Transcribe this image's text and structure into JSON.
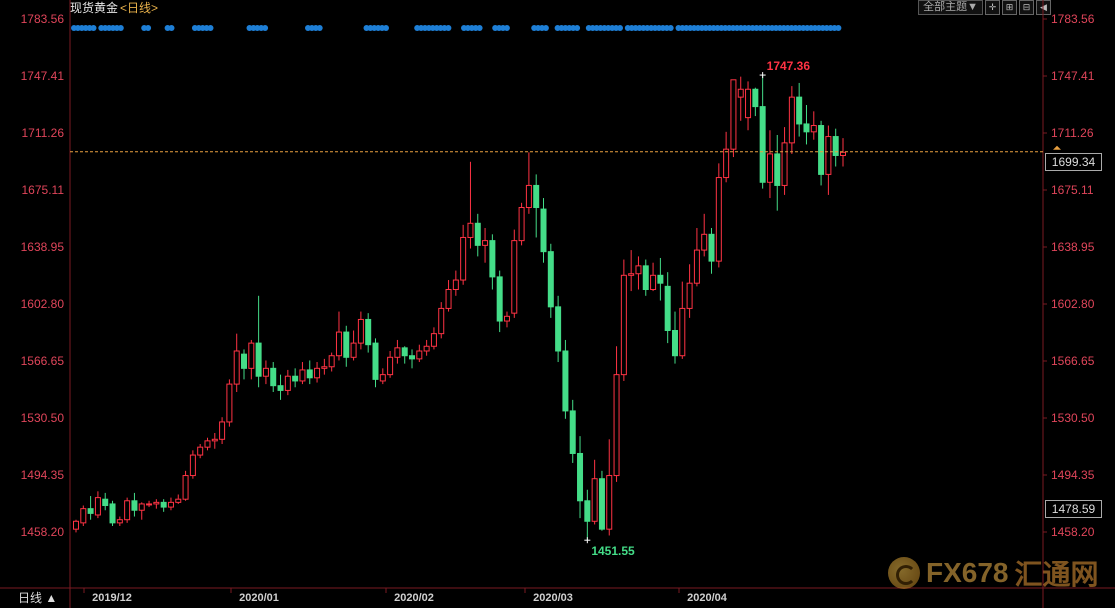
{
  "header": {
    "instrument": "现货黄金",
    "period": "<日线>",
    "theme_label": "全部主题▼",
    "tool_icons": [
      "crosshair-icon",
      "zoom-in-icon",
      "zoom-out-icon",
      "back-icon"
    ]
  },
  "footer": {
    "period_button": "日线 ▲"
  },
  "price_boxes": {
    "current": "1699.34",
    "crosshair": "1478.59"
  },
  "watermark": {
    "brand": "FX678",
    "cn": "汇通网"
  },
  "chart_data": {
    "type": "candlestick",
    "ylim": [
      1451,
      1790
    ],
    "y_ticks": [
      "1783.56",
      "1747.41",
      "1711.26",
      "1675.11",
      "1638.95",
      "1602.80",
      "1566.65",
      "1530.50",
      "1494.35",
      "1458.20"
    ],
    "x_ticks": [
      "2019/12",
      "2020/01",
      "2020/02",
      "2020/03",
      "2020/04"
    ],
    "current_price": 1699.34,
    "high_annotation": "1747.36",
    "low_annotation": "1451.55",
    "colors": {
      "up": "#ff3344",
      "down": "#44dd88",
      "axis_text": "#e0455a",
      "dash": "#e8a040",
      "dots": "#1e7fd6"
    },
    "candles": [
      [
        1460,
        1465,
        1458,
        1466
      ],
      [
        1464,
        1473,
        1462,
        1475
      ],
      [
        1473,
        1470,
        1466,
        1481
      ],
      [
        1469,
        1480,
        1467,
        1484
      ],
      [
        1479,
        1475,
        1472,
        1483
      ],
      [
        1476,
        1464,
        1462,
        1478
      ],
      [
        1464,
        1466,
        1462,
        1468
      ],
      [
        1466,
        1478,
        1464,
        1480
      ],
      [
        1478,
        1472,
        1468,
        1483
      ],
      [
        1472,
        1476,
        1466,
        1477
      ],
      [
        1476,
        1476,
        1474,
        1478
      ],
      [
        1476,
        1477,
        1473,
        1479
      ],
      [
        1477,
        1474,
        1471,
        1479
      ],
      [
        1474,
        1477,
        1472,
        1480
      ],
      [
        1477,
        1479,
        1476,
        1482
      ],
      [
        1479,
        1494,
        1478,
        1497
      ],
      [
        1494,
        1507,
        1492,
        1510
      ],
      [
        1507,
        1512,
        1505,
        1514
      ],
      [
        1512,
        1516,
        1510,
        1518
      ],
      [
        1516,
        1517,
        1511,
        1521
      ],
      [
        1517,
        1528,
        1514,
        1531
      ],
      [
        1528,
        1552,
        1525,
        1555
      ],
      [
        1552,
        1573,
        1547,
        1584
      ],
      [
        1571,
        1562,
        1555,
        1574
      ],
      [
        1562,
        1578,
        1555,
        1580
      ],
      [
        1578,
        1557,
        1550,
        1608
      ],
      [
        1557,
        1562,
        1552,
        1567
      ],
      [
        1562,
        1551,
        1547,
        1566
      ],
      [
        1551,
        1548,
        1542,
        1558
      ],
      [
        1548,
        1557,
        1545,
        1561
      ],
      [
        1557,
        1554,
        1550,
        1562
      ],
      [
        1554,
        1561,
        1552,
        1566
      ],
      [
        1561,
        1556,
        1552,
        1567
      ],
      [
        1556,
        1562,
        1553,
        1566
      ],
      [
        1562,
        1563,
        1558,
        1568
      ],
      [
        1563,
        1570,
        1560,
        1572
      ],
      [
        1570,
        1585,
        1567,
        1598
      ],
      [
        1585,
        1569,
        1563,
        1589
      ],
      [
        1569,
        1578,
        1567,
        1586
      ],
      [
        1578,
        1593,
        1574,
        1598
      ],
      [
        1593,
        1577,
        1572,
        1597
      ],
      [
        1578,
        1555,
        1550,
        1581
      ],
      [
        1554,
        1558,
        1552,
        1562
      ],
      [
        1558,
        1569,
        1556,
        1573
      ],
      [
        1569,
        1575,
        1565,
        1580
      ],
      [
        1575,
        1570,
        1565,
        1576
      ],
      [
        1570,
        1568,
        1562,
        1574
      ],
      [
        1568,
        1573,
        1566,
        1577
      ],
      [
        1573,
        1576,
        1570,
        1580
      ],
      [
        1576,
        1584,
        1574,
        1588
      ],
      [
        1584,
        1600,
        1581,
        1604
      ],
      [
        1600,
        1612,
        1598,
        1618
      ],
      [
        1612,
        1618,
        1608,
        1624
      ],
      [
        1618,
        1645,
        1615,
        1653
      ],
      [
        1645,
        1654,
        1638,
        1693
      ],
      [
        1654,
        1640,
        1633,
        1660
      ],
      [
        1640,
        1643,
        1629,
        1651
      ],
      [
        1643,
        1620,
        1612,
        1647
      ],
      [
        1620,
        1592,
        1585,
        1624
      ],
      [
        1592,
        1595,
        1588,
        1598
      ],
      [
        1597,
        1643,
        1594,
        1650
      ],
      [
        1643,
        1664,
        1640,
        1667
      ],
      [
        1664,
        1678,
        1660,
        1699
      ],
      [
        1678,
        1664,
        1645,
        1685
      ],
      [
        1663,
        1636,
        1629,
        1670
      ],
      [
        1636,
        1601,
        1594,
        1641
      ],
      [
        1601,
        1573,
        1566,
        1608
      ],
      [
        1573,
        1535,
        1530,
        1580
      ],
      [
        1535,
        1508,
        1502,
        1542
      ],
      [
        1508,
        1478,
        1467,
        1519
      ],
      [
        1478,
        1465,
        1453,
        1485
      ],
      [
        1465,
        1492,
        1463,
        1504
      ],
      [
        1492,
        1460,
        1459,
        1497
      ],
      [
        1460,
        1494,
        1456,
        1517
      ],
      [
        1494,
        1558,
        1490,
        1576
      ],
      [
        1558,
        1621,
        1554,
        1631
      ],
      [
        1621,
        1622,
        1611,
        1637
      ],
      [
        1622,
        1627,
        1612,
        1633
      ],
      [
        1627,
        1612,
        1608,
        1631
      ],
      [
        1612,
        1621,
        1611,
        1629
      ],
      [
        1621,
        1616,
        1605,
        1632
      ],
      [
        1614,
        1586,
        1578,
        1623
      ],
      [
        1586,
        1570,
        1565,
        1598
      ],
      [
        1570,
        1600,
        1568,
        1617
      ],
      [
        1600,
        1616,
        1594,
        1628
      ],
      [
        1616,
        1637,
        1614,
        1651
      ],
      [
        1637,
        1647,
        1633,
        1660
      ],
      [
        1647,
        1630,
        1622,
        1651
      ],
      [
        1630,
        1683,
        1626,
        1692
      ],
      [
        1683,
        1701,
        1680,
        1712
      ],
      [
        1701,
        1745,
        1696,
        1744
      ],
      [
        1734,
        1739,
        1719,
        1747
      ],
      [
        1721,
        1739,
        1713,
        1744
      ],
      [
        1739,
        1728,
        1722,
        1740
      ],
      [
        1728,
        1680,
        1676,
        1748
      ],
      [
        1680,
        1698,
        1670,
        1713
      ],
      [
        1698,
        1678,
        1662,
        1710
      ],
      [
        1678,
        1705,
        1672,
        1715
      ],
      [
        1705,
        1734,
        1698,
        1741
      ],
      [
        1734,
        1717,
        1709,
        1743
      ],
      [
        1717,
        1712,
        1704,
        1729
      ],
      [
        1712,
        1716,
        1707,
        1725
      ],
      [
        1716,
        1685,
        1678,
        1719
      ],
      [
        1685,
        1709,
        1672,
        1716
      ],
      [
        1709,
        1697,
        1690,
        1714
      ],
      [
        1697,
        1699,
        1690,
        1708
      ]
    ],
    "dots_segments": [
      [
        0,
        5
      ],
      [
        7,
        12
      ],
      [
        18,
        19
      ],
      [
        24,
        25
      ],
      [
        31,
        35
      ],
      [
        45,
        49
      ],
      [
        60,
        63
      ],
      [
        75,
        80
      ],
      [
        88,
        96
      ],
      [
        100,
        104
      ],
      [
        108,
        111
      ],
      [
        118,
        121
      ],
      [
        124,
        129
      ],
      [
        132,
        140
      ],
      [
        142,
        153
      ],
      [
        155,
        196
      ]
    ]
  }
}
